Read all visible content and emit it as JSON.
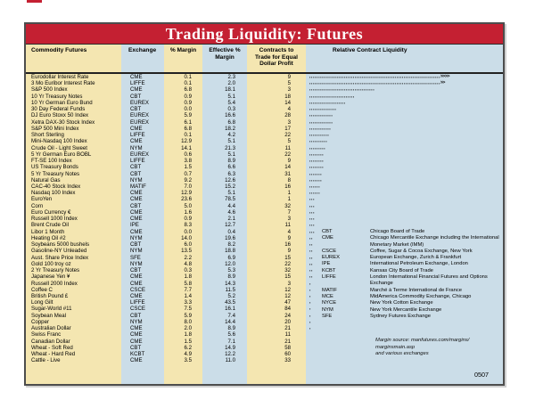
{
  "page": {
    "accent_red": "#c42032",
    "cream": "#f4e6b1",
    "light_blue": "#cbdde8"
  },
  "table": {
    "title": "Trading Liquidity: Futures",
    "code": "0507",
    "margin_note": [
      "Margin source: manfutures.com/margins/",
      "marginsmain.asp",
      "and various exchanges"
    ]
  },
  "columns": {
    "commodity": "Commodity Futures",
    "exchange": "Exchange",
    "margin": "% Margin",
    "effective": "Effective % Margin",
    "contracts": "Contracts to Trade for Equal Dollar Profit",
    "liquidity": "Relative Contract Liquidity"
  },
  "rows": [
    {
      "name": "Eurodollar Interest Rate",
      "ex": "CME",
      "m": "0.1",
      "em": "2.3",
      "c": "9",
      "dots": 72,
      "arr": ">>>>"
    },
    {
      "name": "3 Mo Euribor Interest Rate",
      "ex": "LIFFE",
      "m": "0.1",
      "em": "2.0",
      "c": "5",
      "dots": 72,
      "arr": ">>"
    },
    {
      "name": "S&P 500 Index",
      "ex": "CME",
      "m": "6.8",
      "em": "18.1",
      "c": "3",
      "dots": 36,
      "arr": ""
    },
    {
      "name": "10 Yr Treasury Notes",
      "ex": "CBT",
      "m": "0.9",
      "em": "5.1",
      "c": "18",
      "dots": 25,
      "arr": ""
    },
    {
      "name": "10 Yr German Euro Bund",
      "ex": "EUREX",
      "m": "0.9",
      "em": "5.4",
      "c": "14",
      "dots": 20,
      "arr": ""
    },
    {
      "name": "30 Day Federal Funds",
      "ex": "CBT",
      "m": "0.0",
      "em": "0.3",
      "c": "4",
      "dots": 15,
      "arr": ""
    },
    {
      "name": "DJ Euro Stoxx 50 Index",
      "ex": "EUREX",
      "m": "5.9",
      "em": "16.6",
      "c": "28",
      "dots": 13,
      "arr": ""
    },
    {
      "name": "Xetra DAX-30 Stock Index",
      "ex": "EUREX",
      "m": "6.1",
      "em": "6.8",
      "c": "3",
      "dots": 13,
      "arr": ""
    },
    {
      "name": "S&P 500 Mini Index",
      "ex": "CME",
      "m": "6.8",
      "em": "18.2",
      "c": "17",
      "dots": 12,
      "arr": ""
    },
    {
      "name": "Short Sterling",
      "ex": "LIFFE",
      "m": "0.1",
      "em": "4.2",
      "c": "22",
      "dots": 11,
      "arr": ""
    },
    {
      "name": "Mini-Nasdaq 100 Index",
      "ex": "CME",
      "m": "12.9",
      "em": "5.1",
      "c": "5",
      "dots": 10,
      "arr": ""
    },
    {
      "name": "Crude Oil - Light Sweet",
      "ex": "NYM",
      "m": "14.1",
      "em": "21.3",
      "c": "11",
      "dots": 9,
      "arr": ""
    },
    {
      "name": "5 Yr German Euro BOBL",
      "ex": "EUREX",
      "m": "0.6",
      "em": "5.1",
      "c": "22",
      "dots": 8,
      "arr": ""
    },
    {
      "name": "FT-SE 100 Index",
      "ex": "LIFFE",
      "m": "3.8",
      "em": "8.9",
      "c": "9",
      "dots": 8,
      "arr": ""
    },
    {
      "name": "US Treasury Bonds",
      "ex": "CBT",
      "m": "1.5",
      "em": "6.6",
      "c": "14",
      "dots": 8,
      "arr": ""
    },
    {
      "name": "5 Yr Treasury Notes",
      "ex": "CBT",
      "m": "0.7",
      "em": "6.3",
      "c": "31",
      "dots": 7,
      "arr": ""
    },
    {
      "name": "Natural Gas",
      "ex": "NYM",
      "m": "9.2",
      "em": "12.6",
      "c": "8",
      "dots": 7,
      "arr": ""
    },
    {
      "name": "CAC-40 Stock Index",
      "ex": "MATIF",
      "m": "7.0",
      "em": "15.2",
      "c": "16",
      "dots": 6,
      "arr": ""
    },
    {
      "name": "Nasdaq 100 Index",
      "ex": "CME",
      "m": "12.9",
      "em": "5.1",
      "c": "1",
      "dots": 6,
      "arr": ""
    },
    {
      "name": "EuroYen",
      "ex": "CME",
      "m": "23.6",
      "em": "78.5",
      "c": "1",
      "dots": 3,
      "arr": ""
    },
    {
      "name": "Corn",
      "ex": "CBT",
      "m": "5.0",
      "em": "4.4",
      "c": "32",
      "dots": 3,
      "arr": ""
    },
    {
      "name": "Euro Currency €",
      "ex": "CME",
      "m": "1.6",
      "em": "4.6",
      "c": "7",
      "dots": 3,
      "arr": ""
    },
    {
      "name": "Russell 1000 Index",
      "ex": "CME",
      "m": "0.9",
      "em": "2.1",
      "c": "3",
      "dots": 3,
      "arr": ""
    },
    {
      "name": "Brent Crude Oil",
      "ex": "IPE",
      "m": "8.3",
      "em": "12.7",
      "c": "11",
      "dots": 3,
      "arr": ""
    },
    {
      "name": "Libor 1 Month",
      "ex": "CME",
      "m": "0.0",
      "em": "0.4",
      "c": "4",
      "dots": 3,
      "arr": ""
    },
    {
      "name": "Heating Oil #2",
      "ex": "NYM",
      "m": "14.0",
      "em": "19.6",
      "c": "9",
      "dots": 2,
      "arr": ""
    },
    {
      "name": "Soybeans 5000 bushels",
      "ex": "CBT",
      "m": "6.0",
      "em": "8.2",
      "c": "16",
      "dots": 2,
      "arr": ""
    },
    {
      "name": "Gasoline-NY Unleaded",
      "ex": "NYM",
      "m": "13.5",
      "em": "18.8",
      "c": "9",
      "dots": 2,
      "arr": ""
    },
    {
      "name": "Aust. Share Price Index",
      "ex": "SFE",
      "m": "2.2",
      "em": "6.9",
      "c": "15",
      "dots": 2,
      "arr": ""
    },
    {
      "name": "Gold 100 troy oz",
      "ex": "NYM",
      "m": "4.8",
      "em": "12.0",
      "c": "22",
      "dots": 2,
      "arr": ""
    },
    {
      "name": "2 Yr Treasury Notes",
      "ex": "CBT",
      "m": "0.3",
      "em": "5.3",
      "c": "32",
      "dots": 2,
      "arr": ""
    },
    {
      "name": "Japanese Yen ¥",
      "ex": "CME",
      "m": "1.8",
      "em": "8.9",
      "c": "15",
      "dots": 2,
      "arr": ""
    },
    {
      "name": "Russell 2000 Index",
      "ex": "CME",
      "m": "5.8",
      "em": "14.3",
      "c": "3",
      "dots": 1,
      "arr": ""
    },
    {
      "name": "Coffee C",
      "ex": "CSCE",
      "m": "7.7",
      "em": "11.5",
      "c": "12",
      "dots": 1,
      "arr": ""
    },
    {
      "name": "British Pound £",
      "ex": "CME",
      "m": "1.4",
      "em": "5.2",
      "c": "12",
      "dots": 1,
      "arr": ""
    },
    {
      "name": "Long Gilt",
      "ex": "LIFFE",
      "m": "3.3",
      "em": "43.5",
      "c": "47",
      "dots": 1,
      "arr": ""
    },
    {
      "name": "Sugar-World #11",
      "ex": "CSCE",
      "m": "7.5",
      "em": "16.1",
      "c": "84",
      "dots": 1,
      "arr": ""
    },
    {
      "name": "Soybean Meal",
      "ex": "CBT",
      "m": "5.9",
      "em": "7.4",
      "c": "24",
      "dots": 1,
      "arr": ""
    },
    {
      "name": "Copper",
      "ex": "NYM",
      "m": "8.0",
      "em": "14.4",
      "c": "20",
      "dots": 1,
      "arr": ""
    },
    {
      "name": "Australian Dollar",
      "ex": "CME",
      "m": "2.0",
      "em": "8.9",
      "c": "21",
      "dots": 1,
      "arr": ""
    },
    {
      "name": "Swiss Franc",
      "ex": "CME",
      "m": "1.8",
      "em": "5.6",
      "c": "11",
      "dots": 0,
      "arr": ""
    },
    {
      "name": "Canadian Dollar",
      "ex": "CME",
      "m": "1.5",
      "em": "7.1",
      "c": "21",
      "dots": 0,
      "arr": ""
    },
    {
      "name": "Wheat - Soft Red",
      "ex": "CBT",
      "m": "6.2",
      "em": "14.9",
      "c": "58",
      "dots": 0,
      "arr": ""
    },
    {
      "name": "Wheat - Hard Red",
      "ex": "KCBT",
      "m": "4.9",
      "em": "12.2",
      "c": "60",
      "dots": 0,
      "arr": ""
    },
    {
      "name": "Cattle - Live",
      "ex": "CME",
      "m": "3.5",
      "em": "11.0",
      "c": "33",
      "dots": 0,
      "arr": ""
    }
  ],
  "legend": [
    {
      "abbr": "CBT",
      "desc": "Chicago Board of Trade"
    },
    {
      "abbr": "CME",
      "desc": "Chicago Mercantile Exchange including the International Monetary Market (IMM)"
    },
    {
      "abbr": "CSCE",
      "desc": "Coffee, Sugar & Cocoa Exchange, New York"
    },
    {
      "abbr": "EUREX",
      "desc": "European Exchange, Zurich & Frankfurt"
    },
    {
      "abbr": "IPE",
      "desc": "International Petroleum Exchange, London"
    },
    {
      "abbr": "KCBT",
      "desc": "Kansas City Board of Trade"
    },
    {
      "abbr": "LIFFE",
      "desc": "London International Financial Futures and Options Exchange"
    },
    {
      "abbr": "MATIF",
      "desc": "Marché à Terme International de France"
    },
    {
      "abbr": "MCE",
      "desc": "MidAmerica Commodity Exchange, Chicago"
    },
    {
      "abbr": "NYCE",
      "desc": "New York Cotton Exchange"
    },
    {
      "abbr": "NYM",
      "desc": "New York Mercantile Exchange"
    },
    {
      "abbr": "SFE",
      "desc": "Sydney Futures Exchange"
    }
  ]
}
